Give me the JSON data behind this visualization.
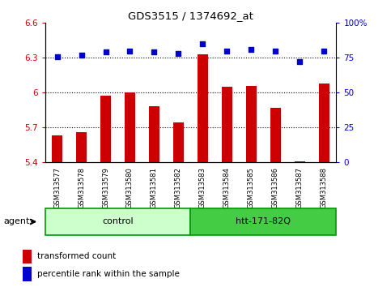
{
  "title": "GDS3515 / 1374692_at",
  "samples": [
    "GSM313577",
    "GSM313578",
    "GSM313579",
    "GSM313580",
    "GSM313581",
    "GSM313582",
    "GSM313583",
    "GSM313584",
    "GSM313585",
    "GSM313586",
    "GSM313587",
    "GSM313588"
  ],
  "transformed_count": [
    5.63,
    5.66,
    5.97,
    6.0,
    5.88,
    5.74,
    6.33,
    6.05,
    6.06,
    5.87,
    5.41,
    6.08
  ],
  "percentile_rank": [
    76,
    77,
    79,
    80,
    79,
    78,
    85,
    80,
    81,
    80,
    72,
    80
  ],
  "ylim_left": [
    5.4,
    6.6
  ],
  "ylim_right": [
    0,
    100
  ],
  "yticks_left": [
    5.4,
    5.7,
    6.0,
    6.3,
    6.6
  ],
  "yticks_right": [
    0,
    25,
    50,
    75,
    100
  ],
  "ytick_labels_left": [
    "5.4",
    "5.7",
    "6",
    "6.3",
    "6.6"
  ],
  "ytick_labels_right": [
    "0",
    "25",
    "50",
    "75",
    "100%"
  ],
  "hlines": [
    5.7,
    6.0,
    6.3
  ],
  "bar_color": "#cc0000",
  "dot_color": "#0000cc",
  "control_label": "control",
  "treatment_label": "htt-171-82Q",
  "agent_label": "agent",
  "legend_bar_label": "transformed count",
  "legend_dot_label": "percentile rank within the sample",
  "control_color": "#ccffcc",
  "treatment_color": "#44cc44",
  "tick_label_area_color": "#cccccc",
  "group_border_color": "#009900",
  "background_color": "#ffffff",
  "n_control": 6,
  "n_treatment": 6
}
